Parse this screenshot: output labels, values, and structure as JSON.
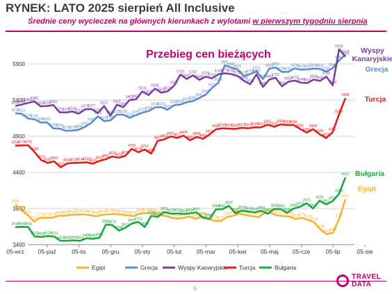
{
  "header": {
    "title": "RYNEK: LATO 2025 sierpień All Inclusive",
    "subtitle_main": "Średnie ceny wycieczek na głównych kierunkach z wylotami",
    "subtitle_underlined": "w pierwszym tygodniu sierpnia"
  },
  "footer": {
    "page_number": "6",
    "logo_line1": "TRAVEL",
    "logo_line2": "DATA"
  },
  "chart_data": {
    "type": "line",
    "title": "Przebieg cen bieżących",
    "xlabel": "",
    "ylabel": "",
    "ylim": [
      3400,
      6150
    ],
    "yticks": [
      3400,
      3900,
      4400,
      4900,
      5400,
      5900
    ],
    "x_ticks": [
      "05-wrz",
      "05-paź",
      "05-lis",
      "05-gru",
      "05-sty",
      "05-lut",
      "05-mar",
      "05-kwi",
      "05-maj",
      "05-cze",
      "05-lip",
      "05-sie"
    ],
    "grid": true,
    "legend_position": "bottom",
    "series": [
      {
        "name": "Egipt",
        "color": "#f4b331",
        "values": [
          3958,
          3873,
          3810,
          3720,
          3771,
          3771,
          3775,
          3800,
          3800,
          3813,
          3816,
          3818,
          3808,
          3792,
          3813,
          3822,
          3824,
          3815,
          3806,
          3796,
          3828,
          3838,
          3832,
          3812,
          3800,
          3776,
          3760,
          3770,
          3790,
          3757,
          3789,
          3760,
          3730,
          3727,
          3781,
          3800,
          3830,
          3810,
          3794,
          3778,
          3834,
          3839,
          3807,
          3796,
          3790,
          3752,
          3770,
          3745,
          3706,
          3608,
          3545,
          3565,
          3760,
          4027
        ]
      },
      {
        "name": "Grecja",
        "color": "#5b8cc8",
        "values": [
          5218,
          5211,
          5145,
          5136,
          5090,
          5091,
          5009,
          5005,
          4975,
          4979,
          4990,
          5031,
          5087,
          5175,
          5110,
          5120,
          5199,
          5199,
          5156,
          5191,
          5224,
          5248,
          5298,
          5303,
          5265,
          5330,
          5339,
          5370,
          5387,
          5431,
          5475,
          5570,
          5639,
          5881,
          5850,
          5825,
          5735,
          5760,
          5797,
          5690,
          5834,
          5852,
          5790,
          5791,
          5838,
          5821,
          5825,
          5836,
          5831,
          5791,
          5841,
          5947,
          6028
        ]
      },
      {
        "name": "Wyspy Kanaryjskie",
        "color": "#7a3fa0",
        "values": [
          5318,
          5338,
          5361,
          5383,
          5313,
          5318,
          5331,
          5231,
          5229,
          5242,
          5212,
          5272,
          5277,
          5219,
          5317,
          5185,
          5337,
          5301,
          5401,
          5412,
          5519,
          5470,
          5558,
          5503,
          5521,
          5598,
          5753,
          5692,
          5742,
          5680,
          5725,
          5701,
          5758,
          5770,
          5760,
          5735,
          5668,
          5619,
          5757,
          5582,
          5684,
          5710,
          5591,
          5653,
          5670,
          5640,
          5637,
          5684,
          5665,
          5725,
          5604,
          6103,
          6001
        ]
      },
      {
        "name": "Turcja",
        "color": "#e21d1d",
        "values": [
          4769,
          4773,
          4775,
          4680,
          4570,
          4530,
          4553,
          4470,
          4523,
          4532,
          4534,
          4539,
          4520,
          4560,
          4583,
          4620,
          4603,
          4630,
          4726,
          4678,
          4716,
          4660,
          4837,
          4856,
          4897,
          4877,
          4909,
          4843,
          4890,
          4865,
          4923,
          4996,
          5010,
          5005,
          5001,
          5017,
          5010,
          5024,
          5023,
          5061,
          5031,
          5063,
          5056,
          5056,
          5001,
          4950,
          4998,
          4929,
          4875,
          4952,
          5200,
          5428
        ]
      },
      {
        "name": "Bułgaria",
        "color": "#1ea53c",
        "values": [
          3643,
          3646,
          3643,
          3513,
          3508,
          3518,
          3513,
          3453,
          3455,
          3460,
          3453,
          3488,
          3481,
          3495,
          3680,
          3670,
          3594,
          3633,
          3692,
          3713,
          3644,
          3799,
          3784,
          3852,
          3829,
          3833,
          3824,
          3834,
          3847,
          3771,
          3756,
          3888,
          3891,
          3937,
          3837,
          3870,
          3859,
          3846,
          3868,
          3827,
          3893,
          3892,
          3840,
          3900,
          3924,
          3973,
          3901,
          4009,
          3957,
          4000,
          4100,
          4331
        ]
      }
    ],
    "series_end_labels": [
      {
        "name": "Wyspy Kanaryjskie",
        "text": "Wyspy\nKanaryjskie"
      },
      {
        "name": "Grecja",
        "text": "Grecja"
      },
      {
        "name": "Turcja",
        "text": "Turcja"
      },
      {
        "name": "Bułgaria",
        "text": "Bułgaria"
      },
      {
        "name": "Egipt",
        "text": "Egipt"
      }
    ]
  }
}
